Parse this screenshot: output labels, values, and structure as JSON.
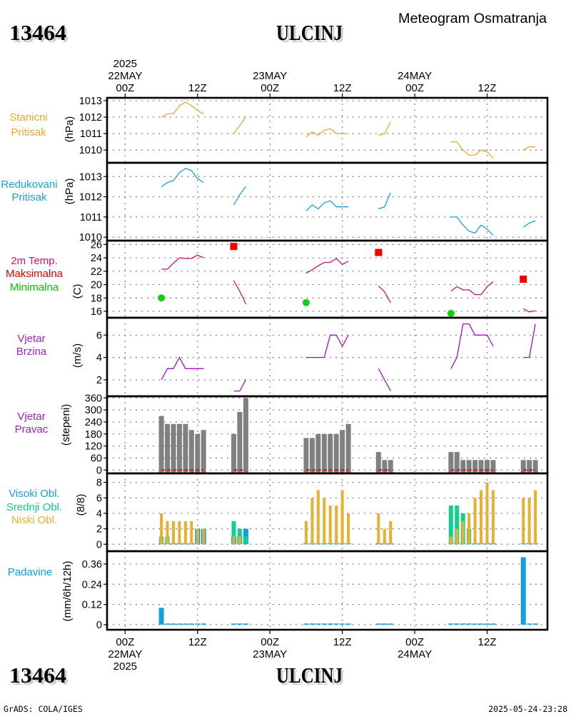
{
  "page": {
    "station_id": "13464",
    "station_name": "ULCINJ",
    "subtitle": "Meteogram Osmatranja",
    "footer_left": "GrADS: COLA/IGES",
    "footer_right": "2025-05-24-23:28"
  },
  "chart_data": {
    "type": "line",
    "title": "Meteogram Osmatranja",
    "station": "ULCINJ",
    "x_axis": {
      "unit": "hours from 22MAY2025 00Z",
      "range": [
        -3,
        70
      ],
      "grid_hours": [
        0,
        12,
        24,
        36,
        48,
        60
      ],
      "grid": true,
      "top_labels": [
        {
          "hour": 0,
          "lines": [
            "2025",
            "22MAY",
            "00Z"
          ]
        },
        {
          "hour": 12,
          "lines": [
            "12Z"
          ]
        },
        {
          "hour": 24,
          "lines": [
            "23MAY",
            "00Z"
          ]
        },
        {
          "hour": 36,
          "lines": [
            "12Z"
          ]
        },
        {
          "hour": 48,
          "lines": [
            "24MAY",
            "00Z"
          ]
        },
        {
          "hour": 60,
          "lines": [
            "12Z"
          ]
        }
      ],
      "bottom_labels": [
        {
          "hour": 0,
          "lines": [
            "00Z",
            "22MAY",
            "2025"
          ]
        },
        {
          "hour": 12,
          "lines": [
            "12Z"
          ]
        },
        {
          "hour": 24,
          "lines": [
            "00Z",
            "23MAY"
          ]
        },
        {
          "hour": 36,
          "lines": [
            "12Z"
          ]
        },
        {
          "hour": 48,
          "lines": [
            "00Z",
            "24MAY"
          ]
        },
        {
          "hour": 60,
          "lines": [
            "12Z"
          ]
        }
      ]
    },
    "x_hours": [
      6,
      7,
      8,
      9,
      10,
      11,
      12,
      13,
      18,
      19,
      20,
      30,
      31,
      32,
      33,
      34,
      35,
      36,
      37,
      42,
      43,
      44,
      54,
      55,
      56,
      57,
      58,
      59,
      60,
      61,
      66,
      67,
      68
    ],
    "panels": [
      {
        "id": "station-pressure",
        "type": "line",
        "labels": [
          {
            "text": "Stanicni",
            "color": "#e6a832"
          },
          {
            "text": "Pritisak",
            "color": "#e6a832"
          }
        ],
        "ylabel": "(hPa)",
        "ylim": [
          1009.23,
          1013.17
        ],
        "yticks": [
          1010,
          1011,
          1012,
          1013
        ],
        "series": [
          {
            "name": "Stanicni Pritisak",
            "kind": "line",
            "color": "#e6a832",
            "values": [
              1012.0,
              1012.2,
              1012.2,
              1012.7,
              1012.9,
              1012.7,
              1012.4,
              1012.2,
              1011.0,
              1011.5,
              1012.0,
              1010.8,
              1011.1,
              1010.9,
              1011.2,
              1011.3,
              1011.0,
              1011.0,
              1011.0,
              1010.9,
              1011.0,
              1011.7,
              1010.5,
              1010.5,
              1010.0,
              1009.7,
              1009.7,
              1010.0,
              1009.9,
              1009.5,
              1010.0,
              1010.2,
              1010.2
            ]
          }
        ]
      },
      {
        "id": "reduced-pressure",
        "type": "line",
        "labels": [
          {
            "text": "Redukovani",
            "color": "#1aa0d8"
          },
          {
            "text": "Pritisak",
            "color": "#1aa0d8"
          }
        ],
        "ylabel": "(hPa)",
        "ylim": [
          1009.83,
          1013.68
        ],
        "yticks": [
          1010,
          1011,
          1012,
          1013
        ],
        "series": [
          {
            "name": "Redukovani Pritisak",
            "kind": "line",
            "color": "#1aa0d8",
            "values": [
              1012.5,
              1012.7,
              1012.8,
              1013.2,
              1013.4,
              1013.3,
              1012.9,
              1012.7,
              1011.6,
              1012.1,
              1012.5,
              1011.3,
              1011.6,
              1011.4,
              1011.7,
              1011.8,
              1011.5,
              1011.5,
              1011.5,
              1011.4,
              1011.5,
              1012.2,
              1011.0,
              1011.0,
              1010.6,
              1010.3,
              1010.2,
              1010.6,
              1010.4,
              1010.1,
              1010.5,
              1010.7,
              1010.8
            ]
          }
        ]
      },
      {
        "id": "temperature",
        "type": "line",
        "labels": [
          {
            "text": "2m Temp.",
            "color": "#d0106e"
          },
          {
            "text": "Maksimalna",
            "color": "#e00000"
          },
          {
            "text": "Minimalna",
            "color": "#00c800"
          }
        ],
        "ylabel": "(C)",
        "ylim": [
          15.04,
          26.57
        ],
        "yticks": [
          16,
          18,
          20,
          22,
          24,
          26
        ],
        "series": [
          {
            "name": "2m Temp",
            "kind": "line",
            "color": "#c8107a",
            "values": [
              22.3,
              22.3,
              23.2,
              24.0,
              23.9,
              23.9,
              24.4,
              24.0,
              20.6,
              19.0,
              17.1,
              21.7,
              22.2,
              22.8,
              23.3,
              23.3,
              23.9,
              23.0,
              23.5,
              19.8,
              18.9,
              17.3,
              19.0,
              19.7,
              19.2,
              19.2,
              18.5,
              18.5,
              19.7,
              20.4,
              16.4,
              15.9,
              16.1
            ]
          },
          {
            "name": "Maksimalna",
            "kind": "marker-square",
            "color": "#f00000",
            "points": [
              {
                "hour": 18,
                "value": 25.7
              },
              {
                "hour": 42,
                "value": 24.8
              },
              {
                "hour": 66,
                "value": 20.8
              }
            ]
          },
          {
            "name": "Minimalna",
            "kind": "marker-circle",
            "color": "#10d010",
            "points": [
              {
                "hour": 6,
                "value": 18.0
              },
              {
                "hour": 30,
                "value": 17.3
              },
              {
                "hour": 54,
                "value": 15.7
              }
            ]
          }
        ]
      },
      {
        "id": "wind-speed",
        "type": "line",
        "labels": [
          {
            "text": "Vjetar",
            "color": "#a020c0"
          },
          {
            "text": "Brzina",
            "color": "#a020c0"
          }
        ],
        "ylabel": "(m/s)",
        "ylim": [
          0.53,
          7.55
        ],
        "yticks": [
          2,
          4,
          6
        ],
        "series": [
          {
            "name": "Vjetar Brzina",
            "kind": "line",
            "color": "#a010c8",
            "values": [
              2,
              3,
              3,
              4,
              3,
              3,
              3,
              3,
              1,
              1,
              2,
              4,
              4,
              4,
              4,
              6,
              6,
              5,
              6,
              3,
              2,
              1,
              3,
              4,
              7,
              7,
              6,
              6,
              6,
              5,
              4,
              4,
              7
            ]
          }
        ]
      },
      {
        "id": "wind-direction",
        "type": "bar",
        "labels": [
          {
            "text": "Vjetar",
            "color": "#a020c0"
          },
          {
            "text": "Pravac",
            "color": "#a020c0"
          }
        ],
        "ylabel": "(stepeni)",
        "ylim": [
          -16.7,
          368.2
        ],
        "yticks": [
          0,
          60,
          120,
          180,
          240,
          300,
          360
        ],
        "series": [
          {
            "name": "Vjetar Pravac",
            "kind": "bar",
            "color": "#808080",
            "values": [
              270,
              230,
              230,
              230,
              230,
              200,
              180,
              200,
              180,
              290,
              360,
              160,
              160,
              180,
              180,
              180,
              180,
              200,
              230,
              90,
              50,
              50,
              90,
              90,
              50,
              50,
              50,
              50,
              50,
              50,
              50,
              50,
              50
            ]
          },
          {
            "name": "Zero Reference",
            "kind": "segment-baseline",
            "color": "#e00000",
            "value": 0
          }
        ]
      },
      {
        "id": "cloud-cover",
        "type": "bar",
        "labels": [
          {
            "text": "Visoki Obl.",
            "color": "#10a0e0"
          },
          {
            "text": "Srednji Obl.",
            "color": "#10c890"
          },
          {
            "text": "Niski Obl.",
            "color": "#e6b030"
          }
        ],
        "ylabel": "(8/8)",
        "ylim": [
          -0.9,
          9.17
        ],
        "yticks": [
          0,
          2,
          4,
          6,
          8
        ],
        "series": [
          {
            "name": "Visoki Obl",
            "kind": "bar",
            "color": "#10a0e0",
            "zero_color": "#10a0e0",
            "values": [
              0,
              0,
              0,
              0,
              0,
              0,
              2,
              2,
              1,
              1,
              2,
              0,
              0,
              0,
              0,
              0,
              0,
              0,
              0,
              0,
              0,
              0,
              0,
              0,
              0,
              0,
              0,
              0,
              0,
              0,
              0,
              0,
              0
            ]
          },
          {
            "name": "Srednji Obl",
            "kind": "bar",
            "color": "#10d090",
            "zero_color": "#20b0b8",
            "values": [
              1,
              1,
              0,
              0,
              0,
              0,
              0,
              0,
              3,
              2,
              1,
              0,
              0,
              0,
              0,
              0,
              0,
              0,
              0,
              0,
              0,
              0,
              5,
              5,
              4,
              2,
              0,
              0,
              0,
              0,
              0,
              0,
              0
            ]
          },
          {
            "name": "Niski Obl",
            "kind": "bar",
            "color": "#e6b030",
            "zero_color": "#20b0b8",
            "values": [
              4,
              3,
              3,
              3,
              3,
              3,
              2,
              2,
              1,
              1,
              0,
              3,
              6,
              7,
              6,
              5,
              5,
              7,
              4,
              4,
              2,
              3,
              1,
              2,
              3,
              4,
              6,
              7,
              8,
              7,
              6,
              6,
              7
            ]
          }
        ]
      },
      {
        "id": "precipitation",
        "type": "bar",
        "labels": [
          {
            "text": "Padavine",
            "color": "#10a0e0"
          }
        ],
        "ylabel": "(mm/6h/12h)",
        "ylim": [
          -0.03,
          0.436
        ],
        "yticks": [
          0,
          0.12,
          0.24,
          0.36
        ],
        "series": [
          {
            "name": "Padavine",
            "kind": "bar",
            "color": "#10a0e0",
            "zero_color": "#10a0e0",
            "values": [
              0.1,
              0,
              0,
              0,
              0,
              0,
              0,
              0,
              0,
              0,
              0,
              0,
              0,
              0,
              0,
              0,
              0,
              0,
              0,
              0,
              0,
              0,
              0,
              0,
              0,
              0,
              0,
              0,
              0,
              0,
              0.4,
              0,
              0
            ]
          }
        ]
      }
    ]
  }
}
